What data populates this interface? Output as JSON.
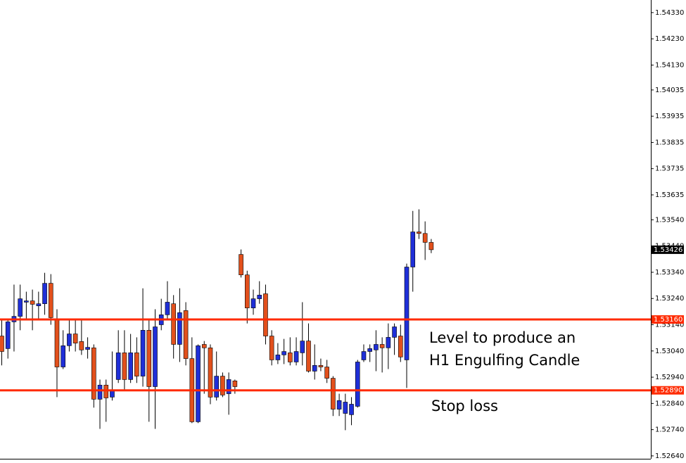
{
  "chart_data": {
    "type": "candlestick",
    "up_color": "#1f2fd8",
    "down_color": "#e2501c",
    "open": [
      1.53097,
      1.53049,
      1.53151,
      1.53172,
      1.53226,
      1.53231,
      1.53212,
      1.5322,
      1.53298,
      1.53159,
      1.52979,
      1.5306,
      1.53105,
      1.53076,
      1.53046,
      1.53052,
      1.52856,
      1.5291,
      1.52864,
      1.52931,
      1.53033,
      1.52931,
      1.53033,
      1.52944,
      1.53119,
      1.52904,
      1.5314,
      1.53178,
      1.5322,
      1.53065,
      1.53194,
      1.53011,
      1.5277,
      1.53065,
      1.53052,
      1.52864,
      1.52944,
      1.52877,
      1.52926,
      1.53408,
      1.5333,
      1.53204,
      1.53239,
      1.53258,
      1.53097,
      1.53006,
      1.53025,
      1.53033,
      1.52998,
      1.53033,
      1.53078,
      1.52963,
      1.52985,
      1.52979,
      1.52936,
      1.52818,
      1.52802,
      1.52797,
      1.52829,
      1.53006,
      1.53038,
      1.53044,
      1.53065,
      1.53052,
      1.53092,
      1.53097,
      1.53006,
      1.5336,
      1.53494,
      1.53488,
      1.53454
    ],
    "high": [
      1.53159,
      1.53159,
      1.53293,
      1.53293,
      1.53266,
      1.53274,
      1.53266,
      1.53338,
      1.53333,
      1.53199,
      1.53119,
      1.53159,
      1.53159,
      1.53159,
      1.53092,
      1.53065,
      1.52931,
      1.52931,
      1.53038,
      1.53119,
      1.53119,
      1.53105,
      1.53092,
      1.53279,
      1.53159,
      1.53199,
      1.53239,
      1.53306,
      1.53253,
      1.53279,
      1.53226,
      1.53092,
      1.53065,
      1.53078,
      1.53065,
      1.53038,
      1.52958,
      1.52958,
      1.52931,
      1.53427,
      1.53346,
      1.53274,
      1.53306,
      1.53293,
      1.53119,
      1.5307,
      1.53086,
      1.53092,
      1.53092,
      1.53226,
      1.53145,
      1.53065,
      1.53011,
      1.53006,
      1.52944,
      1.52877,
      1.52877,
      1.52864,
      1.53006,
      1.53065,
      1.53065,
      1.53119,
      1.53092,
      1.53145,
      1.53145,
      1.5314,
      1.53373,
      1.53574,
      1.5358,
      1.53534,
      1.53467
    ],
    "low": [
      1.52985,
      1.53011,
      1.53038,
      1.53119,
      1.53159,
      1.53119,
      1.53159,
      1.53178,
      1.5314,
      1.52864,
      1.52971,
      1.53038,
      1.53038,
      1.53025,
      1.53011,
      1.52824,
      1.52743,
      1.5277,
      1.52851,
      1.52918,
      1.52891,
      1.52918,
      1.52918,
      1.52904,
      1.5277,
      1.52743,
      1.53119,
      1.53159,
      1.53011,
      1.52998,
      1.52985,
      1.52765,
      1.52765,
      1.52877,
      1.52837,
      1.52851,
      1.52864,
      1.52797,
      1.52877,
      1.5332,
      1.53145,
      1.53178,
      1.5322,
      1.53065,
      1.52985,
      1.5299,
      1.5299,
      1.52985,
      1.52985,
      1.52985,
      1.52958,
      1.52931,
      1.52963,
      1.52918,
      1.52792,
      1.52792,
      1.52738,
      1.52757,
      1.52824,
      1.52998,
      1.52998,
      1.52963,
      1.52958,
      1.52971,
      1.53025,
      1.52998,
      1.52899,
      1.53266,
      1.53467,
      1.53387,
      1.53413
    ],
    "close": [
      1.53038,
      1.53151,
      1.53172,
      1.53239,
      1.53231,
      1.53218,
      1.5322,
      1.53298,
      1.53167,
      1.52979,
      1.5306,
      1.53105,
      1.5307,
      1.53044,
      1.53054,
      1.52856,
      1.5291,
      1.52861,
      1.52891,
      1.53033,
      1.52931,
      1.53033,
      1.52944,
      1.53119,
      1.52904,
      1.53132,
      1.53178,
      1.53226,
      1.53065,
      1.53186,
      1.53011,
      1.5277,
      1.5306,
      1.53052,
      1.52864,
      1.52944,
      1.52872,
      1.52931,
      1.52904,
      1.5333,
      1.53204,
      1.53239,
      1.53253,
      1.53097,
      1.53006,
      1.53025,
      1.53038,
      1.52998,
      1.53038,
      1.53078,
      1.52963,
      1.52985,
      1.52979,
      1.52936,
      1.52818,
      1.52851,
      1.52845,
      1.52837,
      1.52998,
      1.53038,
      1.53049,
      1.53065,
      1.53052,
      1.53092,
      1.53132,
      1.53017,
      1.5336,
      1.53494,
      1.53488,
      1.53454,
      1.53426
    ],
    "ylim": [
      1.52629,
      1.54378
    ],
    "yticks": [
      {
        "value": 1.5433,
        "label": "1.54330"
      },
      {
        "value": 1.5423,
        "label": "1.54230"
      },
      {
        "value": 1.5413,
        "label": "1.54130"
      },
      1.54035,
      1.53935,
      1.53835,
      1.53735,
      1.53635,
      {
        "value": 1.5354,
        "label": "1.53540"
      },
      {
        "value": 1.5344,
        "label": "1.53440"
      },
      {
        "value": 1.5334,
        "label": "1.53340"
      },
      {
        "value": 1.5324,
        "label": "1.53240"
      },
      {
        "value": 1.5314,
        "label": "1.53140"
      },
      {
        "value": 1.5304,
        "label": "1.53040"
      },
      {
        "value": 1.5294,
        "label": "1.52940"
      },
      {
        "value": 1.5284,
        "label": "1.52840"
      },
      {
        "value": 1.5274,
        "label": "1.52740"
      },
      {
        "value": 1.5264,
        "label": "1.52640"
      }
    ],
    "levels": [
      {
        "value": 1.5316,
        "label": "1.53160",
        "color": "#ff2a00"
      },
      {
        "value": 1.5289,
        "label": "1.52890",
        "color": "#ff2a00"
      }
    ],
    "current_price": 1.53426,
    "annotations": [
      "Level to produce an",
      "H1 Engulfing Candle",
      "Stop loss"
    ]
  }
}
